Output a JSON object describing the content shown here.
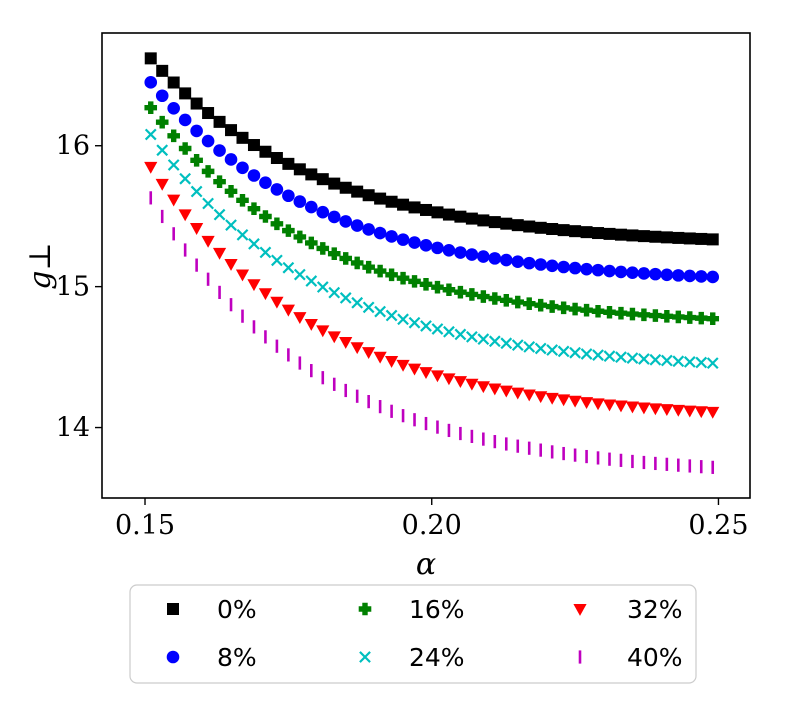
{
  "chart_data": {
    "type": "scatter",
    "title": "",
    "xlabel": "α",
    "ylabel": "g⊥",
    "xlim": [
      0.1425,
      0.2555
    ],
    "ylim": [
      13.5,
      16.8
    ],
    "x_ticks": [
      {
        "value": 0.15,
        "label": "0.15"
      },
      {
        "value": 0.2,
        "label": "0.20"
      },
      {
        "value": 0.25,
        "label": "0.25"
      }
    ],
    "y_ticks": [
      {
        "value": 14,
        "label": "14"
      },
      {
        "value": 15,
        "label": "15"
      },
      {
        "value": 16,
        "label": "16"
      }
    ],
    "x_range": {
      "start": 0.151,
      "end": 0.249,
      "points": 50
    },
    "grid": false,
    "legend_position": "below",
    "series": [
      {
        "name": "0%",
        "marker": "square",
        "color": "#000000",
        "start": 16.62,
        "end": 15.29,
        "decay": 0.029
      },
      {
        "name": "8%",
        "marker": "circle",
        "color": "#0000ff",
        "start": 16.45,
        "end": 15.02,
        "decay": 0.029
      },
      {
        "name": "16%",
        "marker": "plus",
        "color": "#008000",
        "start": 16.27,
        "end": 14.72,
        "decay": 0.029
      },
      {
        "name": "24%",
        "marker": "x",
        "color": "#00bfbf",
        "start": 16.08,
        "end": 14.4,
        "decay": 0.029
      },
      {
        "name": "32%",
        "marker": "triangle_down",
        "color": "#ff0000",
        "start": 15.85,
        "end": 14.05,
        "decay": 0.029
      },
      {
        "name": "40%",
        "marker": "vline",
        "color": "#bf00bf",
        "start": 15.63,
        "end": 13.65,
        "decay": 0.029
      }
    ]
  }
}
